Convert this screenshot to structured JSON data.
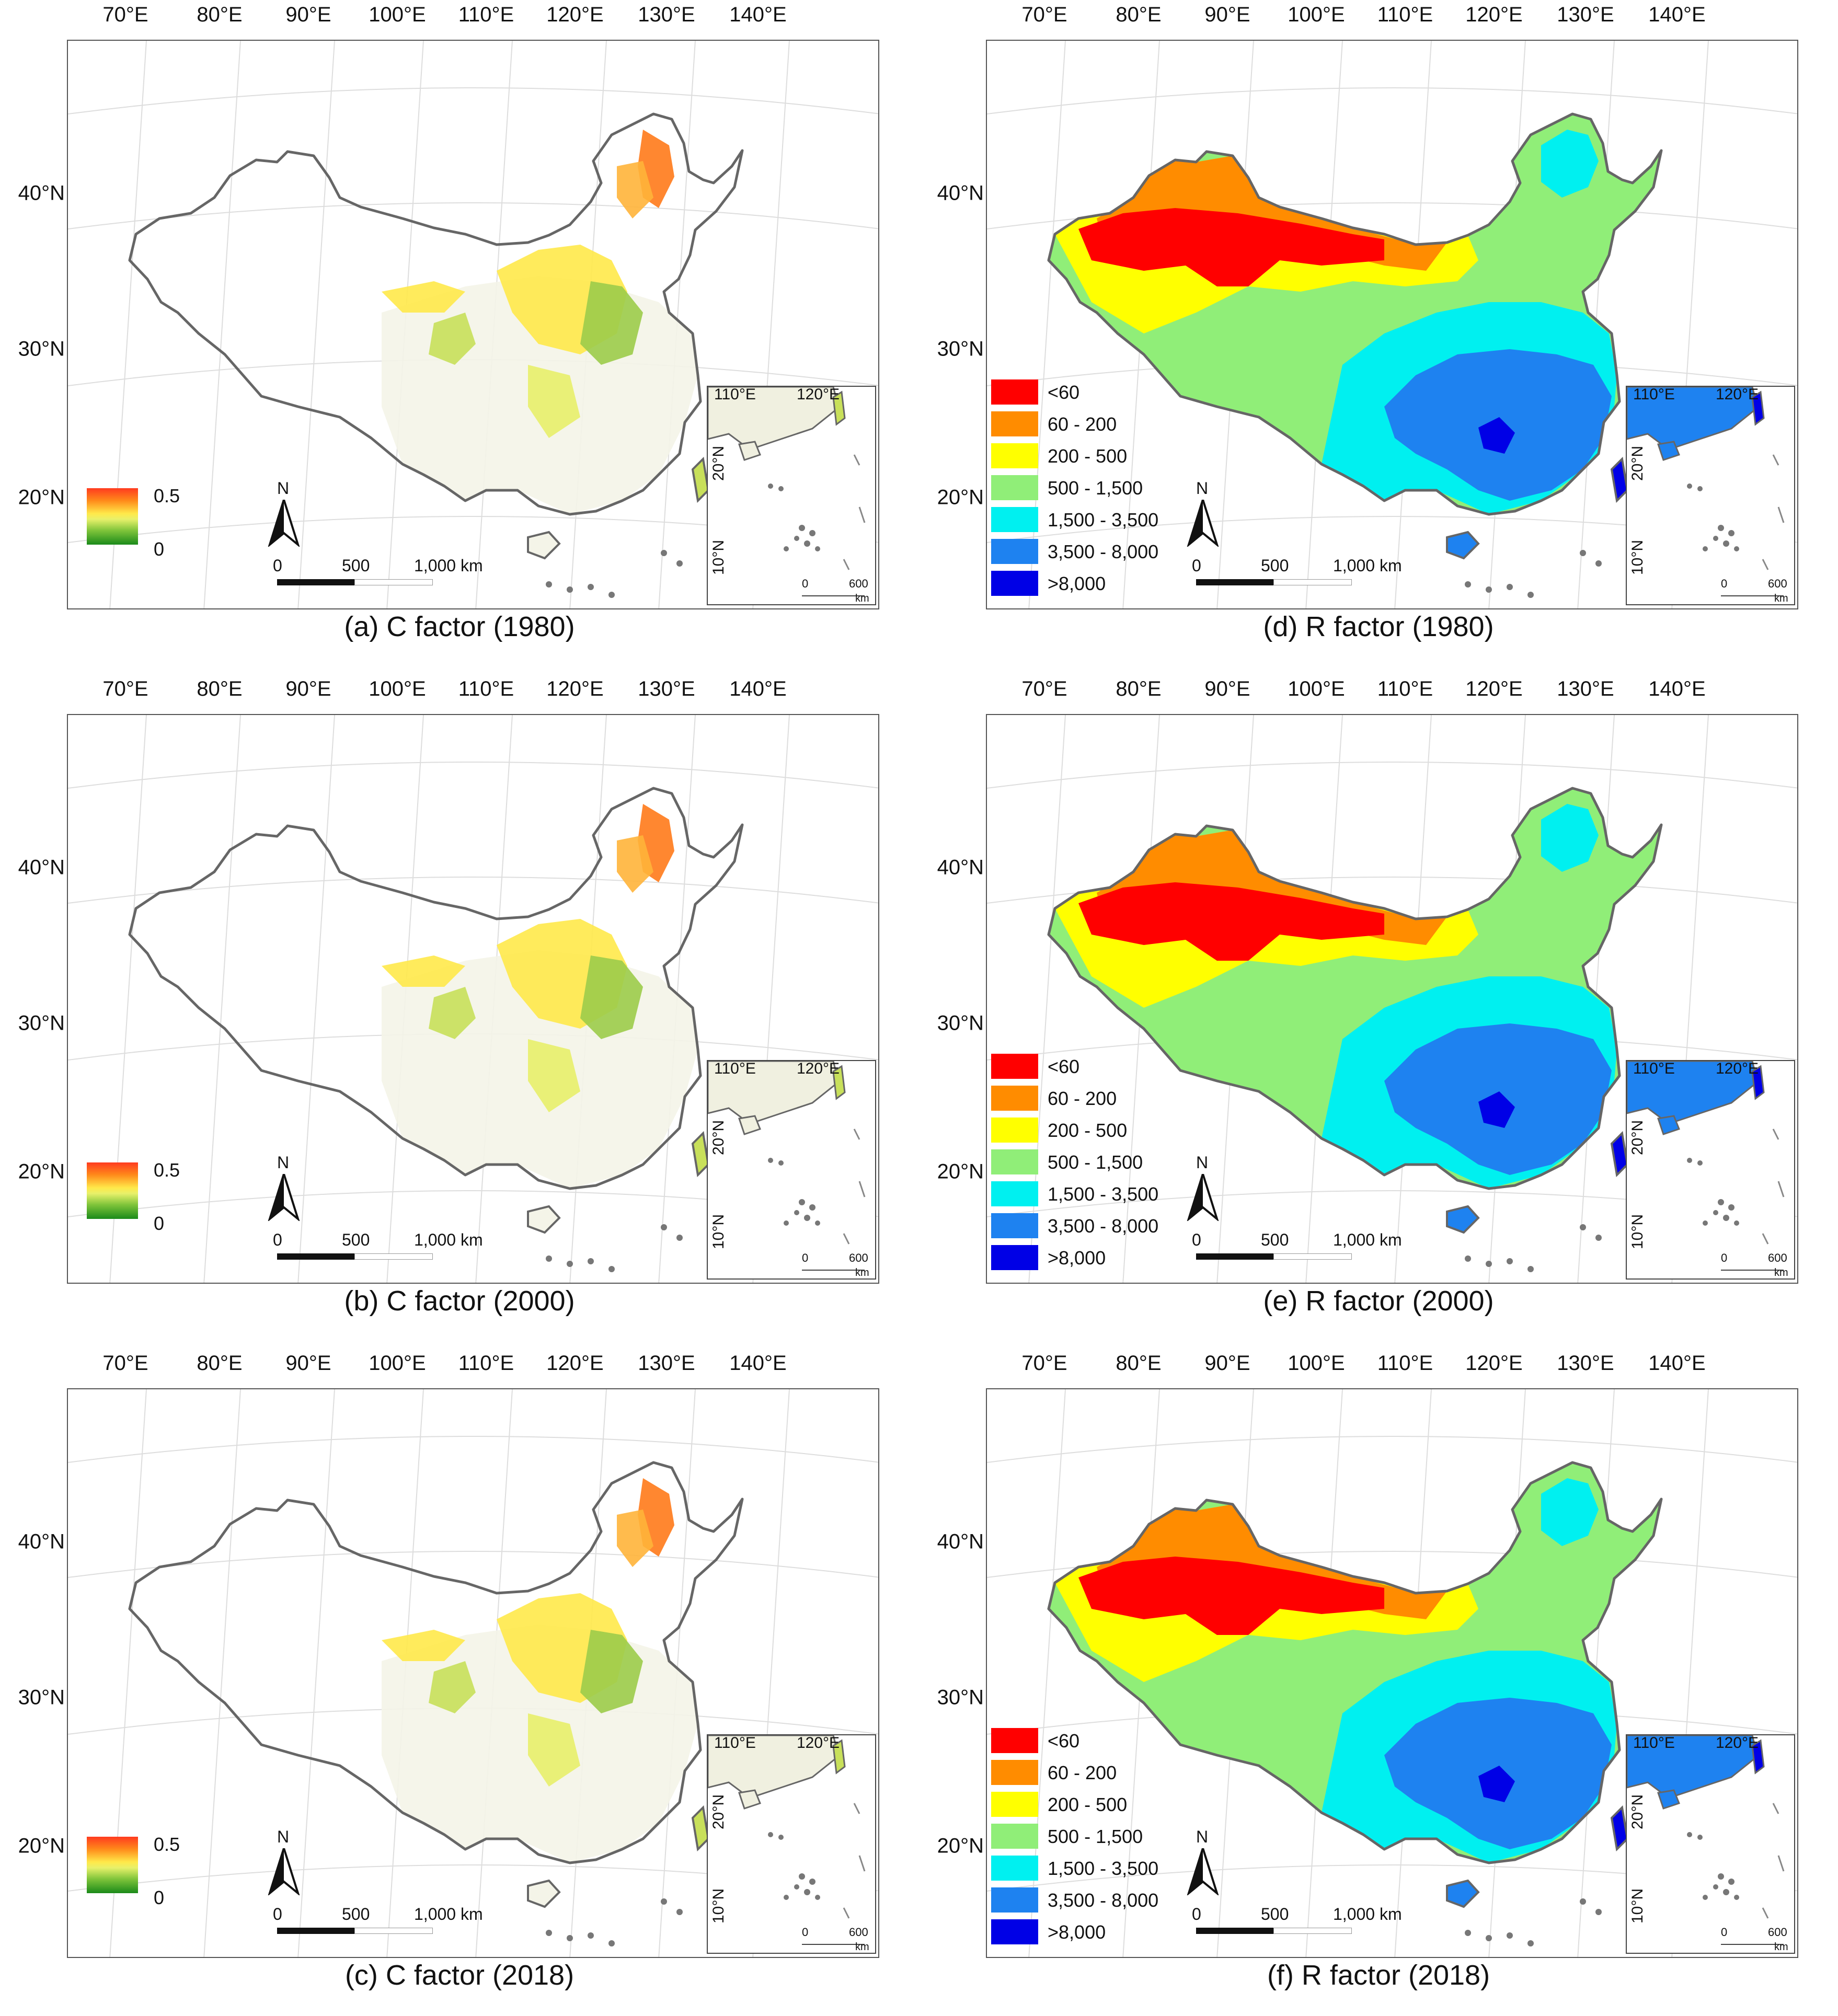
{
  "lon_labels": [
    "70°E",
    "80°E",
    "90°E",
    "100°E",
    "110°E",
    "120°E",
    "130°E",
    "140°E"
  ],
  "lat_labels": [
    "40°N",
    "30°N",
    "20°N"
  ],
  "inset": {
    "lon_labels": [
      "110°E",
      "120°E"
    ],
    "lat_labels": [
      "20°N",
      "10°N"
    ],
    "scale_zero": "0",
    "scale_max": "600",
    "scale_unit": "km"
  },
  "north_label": "N",
  "scale_bar": {
    "zero": "0",
    "mid": "500",
    "max": "1,000 km"
  },
  "c_legend": {
    "high": "0.5",
    "low": "0"
  },
  "r_legend": [
    {
      "label": "<60",
      "color": "#ff0000"
    },
    {
      "label": "60 - 200",
      "color": "#ff8c00"
    },
    {
      "label": "200 - 500",
      "color": "#ffff00"
    },
    {
      "label": "500 - 1,500",
      "color": "#90ee78"
    },
    {
      "label": "1,500 - 3,500",
      "color": "#00f0f0"
    },
    {
      "label": "3,500 - 8,000",
      "color": "#1e82f0"
    },
    {
      "label": ">8,000",
      "color": "#0000e6"
    }
  ],
  "panels": [
    {
      "caption": "(a) C factor (1980)",
      "type": "C"
    },
    {
      "caption": "(d) R factor (1980)",
      "type": "R"
    },
    {
      "caption": "(b) C factor (2000)",
      "type": "C"
    },
    {
      "caption": "(e) R factor (2000)",
      "type": "R"
    },
    {
      "caption": "(c) C factor (2018)",
      "type": "C"
    },
    {
      "caption": "(f) R factor (2018)",
      "type": "R"
    }
  ]
}
